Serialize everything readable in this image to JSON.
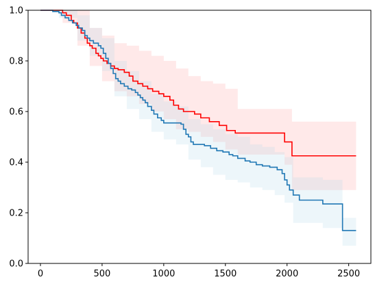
{
  "chart_data": {
    "type": "line",
    "title": "",
    "xlabel": "",
    "ylabel": "",
    "xlim": [
      -100,
      2680
    ],
    "ylim": [
      0,
      1
    ],
    "xticks": [
      0,
      500,
      1000,
      1500,
      2000,
      2500
    ],
    "yticks": [
      0.0,
      0.2,
      0.4,
      0.6,
      0.8,
      1.0
    ],
    "xtick_labels": [
      "0",
      "500",
      "1000",
      "1500",
      "2000",
      "2500"
    ],
    "ytick_labels": [
      "0.0",
      "0.2",
      "0.4",
      "0.6",
      "0.8",
      "1.0"
    ],
    "grid": false,
    "legend": "none",
    "series": [
      {
        "color": "#ff0000",
        "band_color": "#ff9999",
        "steps": [
          [
            0,
            1.0
          ],
          [
            180,
            0.99
          ],
          [
            210,
            0.98
          ],
          [
            250,
            0.96
          ],
          [
            270,
            0.95
          ],
          [
            300,
            0.93
          ],
          [
            330,
            0.91
          ],
          [
            360,
            0.89
          ],
          [
            380,
            0.87
          ],
          [
            400,
            0.86
          ],
          [
            420,
            0.85
          ],
          [
            450,
            0.83
          ],
          [
            470,
            0.82
          ],
          [
            490,
            0.81
          ],
          [
            510,
            0.8
          ],
          [
            540,
            0.79
          ],
          [
            570,
            0.78
          ],
          [
            600,
            0.77
          ],
          [
            630,
            0.765
          ],
          [
            680,
            0.755
          ],
          [
            720,
            0.74
          ],
          [
            750,
            0.72
          ],
          [
            790,
            0.71
          ],
          [
            830,
            0.7
          ],
          [
            870,
            0.69
          ],
          [
            910,
            0.68
          ],
          [
            960,
            0.67
          ],
          [
            1000,
            0.66
          ],
          [
            1050,
            0.645
          ],
          [
            1080,
            0.625
          ],
          [
            1120,
            0.61
          ],
          [
            1160,
            0.6
          ],
          [
            1250,
            0.59
          ],
          [
            1300,
            0.575
          ],
          [
            1370,
            0.56
          ],
          [
            1450,
            0.545
          ],
          [
            1510,
            0.525
          ],
          [
            1580,
            0.515
          ],
          [
            1980,
            0.48
          ],
          [
            2040,
            0.425
          ],
          [
            2560,
            0.425
          ]
        ],
        "ci_upper": [
          [
            0,
            1.0
          ],
          [
            180,
            1.0
          ],
          [
            300,
            1.0
          ],
          [
            400,
            0.93
          ],
          [
            500,
            0.9
          ],
          [
            600,
            0.87
          ],
          [
            700,
            0.86
          ],
          [
            800,
            0.84
          ],
          [
            900,
            0.82
          ],
          [
            1000,
            0.8
          ],
          [
            1100,
            0.77
          ],
          [
            1200,
            0.74
          ],
          [
            1300,
            0.72
          ],
          [
            1400,
            0.71
          ],
          [
            1500,
            0.69
          ],
          [
            1600,
            0.61
          ],
          [
            1980,
            0.61
          ],
          [
            2040,
            0.56
          ],
          [
            2560,
            0.56
          ]
        ],
        "ci_lower": [
          [
            0,
            1.0
          ],
          [
            180,
            0.95
          ],
          [
            300,
            0.86
          ],
          [
            400,
            0.78
          ],
          [
            500,
            0.72
          ],
          [
            600,
            0.68
          ],
          [
            700,
            0.66
          ],
          [
            800,
            0.63
          ],
          [
            900,
            0.6
          ],
          [
            1000,
            0.57
          ],
          [
            1100,
            0.53
          ],
          [
            1200,
            0.52
          ],
          [
            1300,
            0.5
          ],
          [
            1400,
            0.48
          ],
          [
            1500,
            0.45
          ],
          [
            1600,
            0.43
          ],
          [
            1980,
            0.39
          ],
          [
            2040,
            0.29
          ],
          [
            2560,
            0.29
          ]
        ]
      },
      {
        "color": "#1f77b4",
        "band_color": "#add8e6",
        "steps": [
          [
            0,
            1.0
          ],
          [
            100,
            0.995
          ],
          [
            150,
            0.99
          ],
          [
            170,
            0.98
          ],
          [
            200,
            0.97
          ],
          [
            230,
            0.96
          ],
          [
            260,
            0.95
          ],
          [
            290,
            0.94
          ],
          [
            310,
            0.93
          ],
          [
            340,
            0.92
          ],
          [
            360,
            0.9
          ],
          [
            380,
            0.89
          ],
          [
            400,
            0.88
          ],
          [
            430,
            0.87
          ],
          [
            470,
            0.86
          ],
          [
            490,
            0.85
          ],
          [
            510,
            0.83
          ],
          [
            530,
            0.81
          ],
          [
            550,
            0.79
          ],
          [
            570,
            0.77
          ],
          [
            590,
            0.75
          ],
          [
            610,
            0.73
          ],
          [
            630,
            0.72
          ],
          [
            650,
            0.71
          ],
          [
            680,
            0.7
          ],
          [
            710,
            0.69
          ],
          [
            740,
            0.685
          ],
          [
            770,
            0.675
          ],
          [
            790,
            0.665
          ],
          [
            810,
            0.655
          ],
          [
            830,
            0.645
          ],
          [
            850,
            0.635
          ],
          [
            870,
            0.62
          ],
          [
            900,
            0.605
          ],
          [
            920,
            0.59
          ],
          [
            950,
            0.575
          ],
          [
            980,
            0.565
          ],
          [
            1000,
            0.555
          ],
          [
            1140,
            0.55
          ],
          [
            1160,
            0.53
          ],
          [
            1180,
            0.51
          ],
          [
            1200,
            0.5
          ],
          [
            1220,
            0.48
          ],
          [
            1240,
            0.47
          ],
          [
            1330,
            0.465
          ],
          [
            1380,
            0.455
          ],
          [
            1430,
            0.445
          ],
          [
            1480,
            0.44
          ],
          [
            1530,
            0.43
          ],
          [
            1560,
            0.425
          ],
          [
            1600,
            0.415
          ],
          [
            1660,
            0.405
          ],
          [
            1700,
            0.4
          ],
          [
            1750,
            0.39
          ],
          [
            1800,
            0.385
          ],
          [
            1860,
            0.38
          ],
          [
            1920,
            0.37
          ],
          [
            1960,
            0.355
          ],
          [
            1980,
            0.33
          ],
          [
            2000,
            0.31
          ],
          [
            2020,
            0.29
          ],
          [
            2050,
            0.27
          ],
          [
            2100,
            0.25
          ],
          [
            2290,
            0.235
          ],
          [
            2450,
            0.13
          ],
          [
            2560,
            0.13
          ]
        ],
        "ci_upper": [
          [
            0,
            1.0
          ],
          [
            150,
            1.0
          ],
          [
            300,
            0.98
          ],
          [
            400,
            0.93
          ],
          [
            500,
            0.89
          ],
          [
            600,
            0.8
          ],
          [
            700,
            0.76
          ],
          [
            800,
            0.72
          ],
          [
            900,
            0.67
          ],
          [
            1000,
            0.64
          ],
          [
            1100,
            0.62
          ],
          [
            1200,
            0.57
          ],
          [
            1300,
            0.55
          ],
          [
            1400,
            0.53
          ],
          [
            1500,
            0.51
          ],
          [
            1600,
            0.5
          ],
          [
            1700,
            0.47
          ],
          [
            1800,
            0.46
          ],
          [
            1900,
            0.44
          ],
          [
            1980,
            0.42
          ],
          [
            2050,
            0.34
          ],
          [
            2290,
            0.33
          ],
          [
            2450,
            0.18
          ],
          [
            2560,
            0.18
          ]
        ],
        "ci_lower": [
          [
            0,
            1.0
          ],
          [
            150,
            0.97
          ],
          [
            300,
            0.88
          ],
          [
            400,
            0.82
          ],
          [
            500,
            0.76
          ],
          [
            600,
            0.66
          ],
          [
            700,
            0.61
          ],
          [
            800,
            0.57
          ],
          [
            900,
            0.52
          ],
          [
            1000,
            0.49
          ],
          [
            1100,
            0.47
          ],
          [
            1200,
            0.41
          ],
          [
            1300,
            0.38
          ],
          [
            1400,
            0.35
          ],
          [
            1500,
            0.33
          ],
          [
            1600,
            0.32
          ],
          [
            1700,
            0.3
          ],
          [
            1800,
            0.29
          ],
          [
            1900,
            0.27
          ],
          [
            1980,
            0.24
          ],
          [
            2050,
            0.16
          ],
          [
            2290,
            0.14
          ],
          [
            2450,
            0.07
          ],
          [
            2560,
            0.07
          ]
        ]
      }
    ]
  }
}
